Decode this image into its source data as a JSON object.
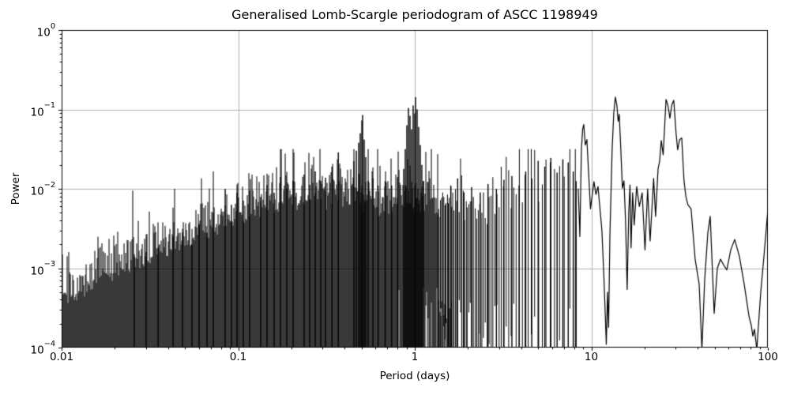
{
  "chart_data": {
    "type": "line",
    "title": "Generalised Lomb-Scargle periodogram of ASCC 1198949",
    "xlabel": "Period (days)",
    "ylabel": "Power",
    "x_scale": "log",
    "y_scale": "log",
    "xlim": [
      0.01,
      100
    ],
    "ylim": [
      0.0001,
      1
    ],
    "grid": true,
    "legend": null,
    "line_color": "#000000",
    "grid_color": "#b0b0b0",
    "frame_color": "#000000",
    "background_color": "#ffffff",
    "x_ticks": {
      "values": [
        0.01,
        0.1,
        1,
        10,
        100
      ],
      "labels": [
        "0.01",
        "0.1",
        "1",
        "10",
        "100"
      ]
    },
    "y_ticks": {
      "values": [
        1,
        0.1,
        0.01,
        0.001,
        0.0001
      ],
      "labels": [
        {
          "base": "10",
          "exp": "0"
        },
        {
          "base": "10",
          "exp": "−1"
        },
        {
          "base": "10",
          "exp": "−2"
        },
        {
          "base": "10",
          "exp": "−3"
        },
        {
          "base": "10",
          "exp": "−4"
        }
      ]
    },
    "series_description": "Generalised Lomb-Scargle power spectrum: dense unresolved noise below ~1.35 d, discrete spikes 1.35-8.4 d, resolved smooth curve 8.4-100 d",
    "regions": {
      "dense_until_days": 1.35,
      "discrete_until_days": 8.43,
      "freq_step": 0.0095,
      "underfill_until_days": 1.62
    },
    "noise": {
      "seed": 13,
      "top_jitter_dex": 0.28,
      "tall_spike_prob": 0.035
    },
    "noise_envelope": [
      [
        0.01,
        0.00028
      ],
      [
        0.016,
        0.00056
      ],
      [
        0.025,
        0.0009
      ],
      [
        0.04,
        0.0014
      ],
      [
        0.063,
        0.0022
      ],
      [
        0.1,
        0.0035
      ],
      [
        0.16,
        0.005
      ],
      [
        0.25,
        0.0056
      ],
      [
        0.4,
        0.0052
      ],
      [
        0.63,
        0.0045
      ],
      [
        0.9,
        0.0056
      ],
      [
        1.1,
        0.005
      ],
      [
        1.5,
        0.004
      ],
      [
        2.5,
        0.0035
      ],
      [
        4.0,
        0.0056
      ],
      [
        6.0,
        0.0079
      ],
      [
        8.43,
        0.01
      ]
    ],
    "peaks": [
      [
        0.0258,
        0.0014
      ],
      [
        0.0301,
        0.0016
      ],
      [
        0.0352,
        0.0018
      ],
      [
        0.0428,
        0.0025
      ],
      [
        0.0484,
        0.0028
      ],
      [
        0.0547,
        0.002
      ],
      [
        0.06,
        0.0035
      ],
      [
        0.0666,
        0.0028
      ],
      [
        0.0723,
        0.005
      ],
      [
        0.0844,
        0.01
      ],
      [
        0.0916,
        0.0063
      ],
      [
        0.0985,
        0.0089
      ],
      [
        0.1069,
        0.0071
      ],
      [
        0.1161,
        0.0095
      ],
      [
        0.1341,
        0.0079
      ],
      [
        0.1457,
        0.0112
      ],
      [
        0.1598,
        0.0089
      ],
      [
        0.1735,
        0.0141
      ],
      [
        0.1884,
        0.01
      ],
      [
        0.2046,
        0.0126
      ],
      [
        0.2363,
        0.0151
      ],
      [
        0.2541,
        0.0112
      ],
      [
        0.2731,
        0.0166
      ],
      [
        0.2935,
        0.0126
      ],
      [
        0.3123,
        0.0138
      ],
      [
        0.34,
        0.019
      ],
      [
        0.369,
        0.0288
      ],
      [
        0.4524,
        0.0224
      ],
      [
        0.4666,
        0.0302
      ],
      [
        0.4813,
        0.038
      ],
      [
        0.4913,
        0.0501
      ],
      [
        0.5015,
        0.0724
      ],
      [
        0.5068,
        0.0851
      ],
      [
        0.5172,
        0.0417
      ],
      [
        0.528,
        0.0251
      ],
      [
        0.5445,
        0.0126
      ],
      [
        0.58,
        0.0135
      ],
      [
        0.62,
        0.011
      ],
      [
        0.68,
        0.0125
      ],
      [
        0.74,
        0.011
      ],
      [
        0.8,
        0.014
      ],
      [
        0.8657,
        0.0178
      ],
      [
        0.8837,
        0.0316
      ],
      [
        0.9021,
        0.0631
      ],
      [
        0.9209,
        0.1047
      ],
      [
        0.94,
        0.0832
      ],
      [
        0.9596,
        0.0562
      ],
      [
        0.9795,
        0.1122
      ],
      [
        1.0,
        0.0891
      ],
      [
        1.0104,
        0.1429
      ],
      [
        1.0314,
        0.1
      ],
      [
        1.0529,
        0.0603
      ],
      [
        1.0748,
        0.0355
      ],
      [
        1.0972,
        0.02
      ],
      [
        1.1199,
        0.0126
      ],
      [
        1.6,
        0.011
      ],
      [
        1.75,
        0.0135
      ],
      [
        1.9,
        0.009
      ],
      [
        2.1,
        0.0105
      ],
      [
        2.35,
        0.009
      ],
      [
        2.6,
        0.0115
      ],
      [
        2.9,
        0.01
      ],
      [
        3.2,
        0.013
      ],
      [
        3.55,
        0.0145
      ],
      [
        3.9,
        0.011
      ],
      [
        4.25,
        0.0165
      ],
      [
        4.6,
        0.0135
      ],
      [
        5.0,
        0.0225
      ],
      [
        5.45,
        0.019
      ],
      [
        5.9,
        0.0245
      ],
      [
        6.4,
        0.016
      ],
      [
        6.9,
        0.0235
      ],
      [
        7.4,
        0.0215
      ],
      [
        7.9,
        0.0165
      ],
      [
        8.2,
        0.0125
      ]
    ],
    "resolved_curve": [
      [
        8.43,
        0.01
      ],
      [
        8.61,
        0.0025
      ],
      [
        8.79,
        0.0316
      ],
      [
        8.93,
        0.0562
      ],
      [
        9.06,
        0.0646
      ],
      [
        9.25,
        0.0355
      ],
      [
        9.44,
        0.0417
      ],
      [
        9.89,
        0.0056
      ],
      [
        10.35,
        0.0123
      ],
      [
        10.62,
        0.0085
      ],
      [
        10.91,
        0.0107
      ],
      [
        11.48,
        0.003
      ],
      [
        11.78,
        0.00079
      ],
      [
        12.16,
        0.00011
      ],
      [
        12.36,
        0.0005
      ],
      [
        12.53,
        0.00018
      ],
      [
        12.74,
        0.0025
      ],
      [
        13.12,
        0.0316
      ],
      [
        13.4,
        0.0891
      ],
      [
        13.68,
        0.143
      ],
      [
        13.96,
        0.1122
      ],
      [
        14.19,
        0.0708
      ],
      [
        14.39,
        0.0871
      ],
      [
        14.69,
        0.0316
      ],
      [
        15.0,
        0.0102
      ],
      [
        15.31,
        0.0126
      ],
      [
        15.63,
        0.004
      ],
      [
        15.96,
        0.00054
      ],
      [
        16.29,
        0.005
      ],
      [
        16.56,
        0.0112
      ],
      [
        16.79,
        0.0018
      ],
      [
        17.14,
        0.0089
      ],
      [
        17.5,
        0.0035
      ],
      [
        18.07,
        0.0107
      ],
      [
        18.71,
        0.006
      ],
      [
        19.41,
        0.0089
      ],
      [
        20.14,
        0.0017
      ],
      [
        20.84,
        0.01
      ],
      [
        21.53,
        0.0022
      ],
      [
        22.54,
        0.0135
      ],
      [
        23.12,
        0.0045
      ],
      [
        23.88,
        0.0178
      ],
      [
        24.38,
        0.0224
      ],
      [
        24.89,
        0.0407
      ],
      [
        25.53,
        0.0269
      ],
      [
        26.49,
        0.1334
      ],
      [
        27.16,
        0.1122
      ],
      [
        27.86,
        0.0776
      ],
      [
        28.58,
        0.1148
      ],
      [
        29.31,
        0.1303
      ],
      [
        30.2,
        0.0501
      ],
      [
        30.83,
        0.0309
      ],
      [
        31.62,
        0.0417
      ],
      [
        32.51,
        0.0437
      ],
      [
        33.5,
        0.0126
      ],
      [
        34.36,
        0.0079
      ],
      [
        35.24,
        0.0063
      ],
      [
        36.73,
        0.0056
      ],
      [
        38.73,
        0.0013
      ],
      [
        40.81,
        0.00063
      ],
      [
        42.31,
        9.5e-05
      ],
      [
        43.86,
        0.00071
      ],
      [
        45.71,
        0.0028
      ],
      [
        47.14,
        0.0045
      ],
      [
        49.64,
        0.00027
      ],
      [
        51.74,
        0.001
      ],
      [
        53.9,
        0.0013
      ],
      [
        56.18,
        0.0011
      ],
      [
        58.53,
        0.00095
      ],
      [
        61.62,
        0.0017
      ],
      [
        64.86,
        0.0023
      ],
      [
        69.01,
        0.0014
      ],
      [
        73.43,
        0.00063
      ],
      [
        78.12,
        0.00025
      ],
      [
        80.56,
        0.00019
      ],
      [
        82.22,
        0.00014
      ],
      [
        83.93,
        0.00017
      ],
      [
        86.57,
        9.5e-05
      ],
      [
        91.13,
        0.0005
      ],
      [
        94.98,
        0.0014
      ],
      [
        100.0,
        0.0055
      ]
    ]
  }
}
